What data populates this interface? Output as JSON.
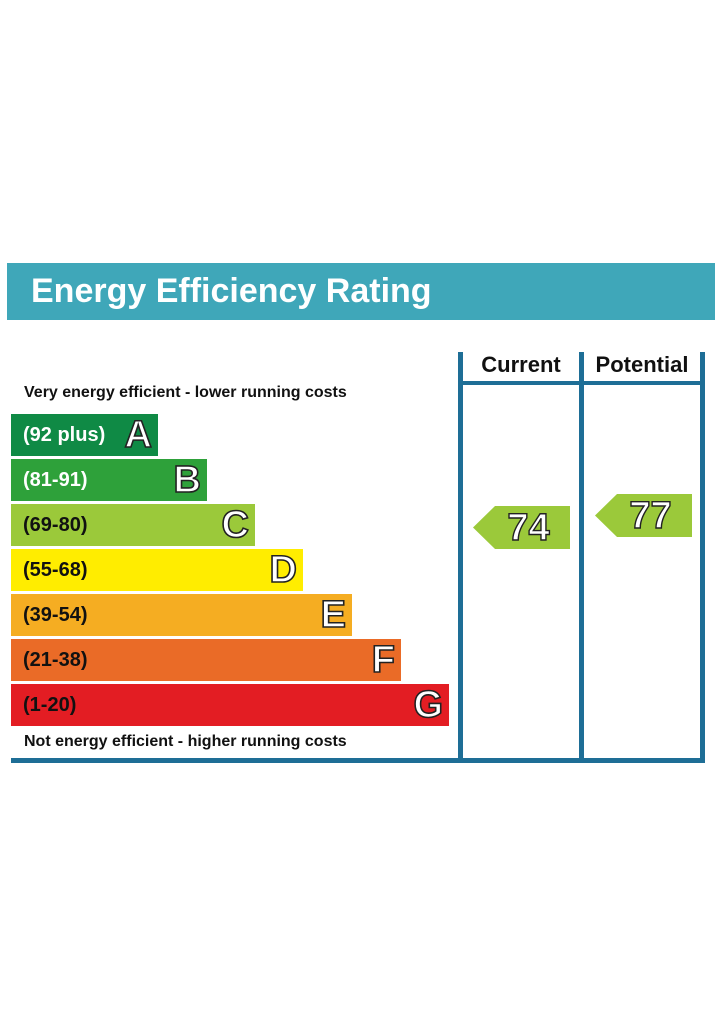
{
  "title": "Energy Efficiency Rating",
  "notes": {
    "top": "Very energy efficient - lower running costs",
    "bottom": "Not energy efficient - higher running costs"
  },
  "columns": {
    "current": "Current",
    "potential": "Potential"
  },
  "chart_data": {
    "type": "bar",
    "title": "Energy Efficiency Rating",
    "bands": [
      {
        "letter": "A",
        "range": "(92 plus)",
        "color": "#0f8a45"
      },
      {
        "letter": "B",
        "range": "(81-91)",
        "color": "#2ea13a"
      },
      {
        "letter": "C",
        "range": "(69-80)",
        "color": "#9bc93a"
      },
      {
        "letter": "D",
        "range": "(55-68)",
        "color": "#ffed00"
      },
      {
        "letter": "E",
        "range": "(39-54)",
        "color": "#f5ad22"
      },
      {
        "letter": "F",
        "range": "(21-38)",
        "color": "#ea6b27"
      },
      {
        "letter": "G",
        "range": "(1-20)",
        "color": "#e31d23"
      }
    ],
    "current": {
      "value": "74",
      "band": "C",
      "color": "#9bc93a"
    },
    "potential": {
      "value": "77",
      "band": "C",
      "color": "#9bc93a"
    }
  }
}
